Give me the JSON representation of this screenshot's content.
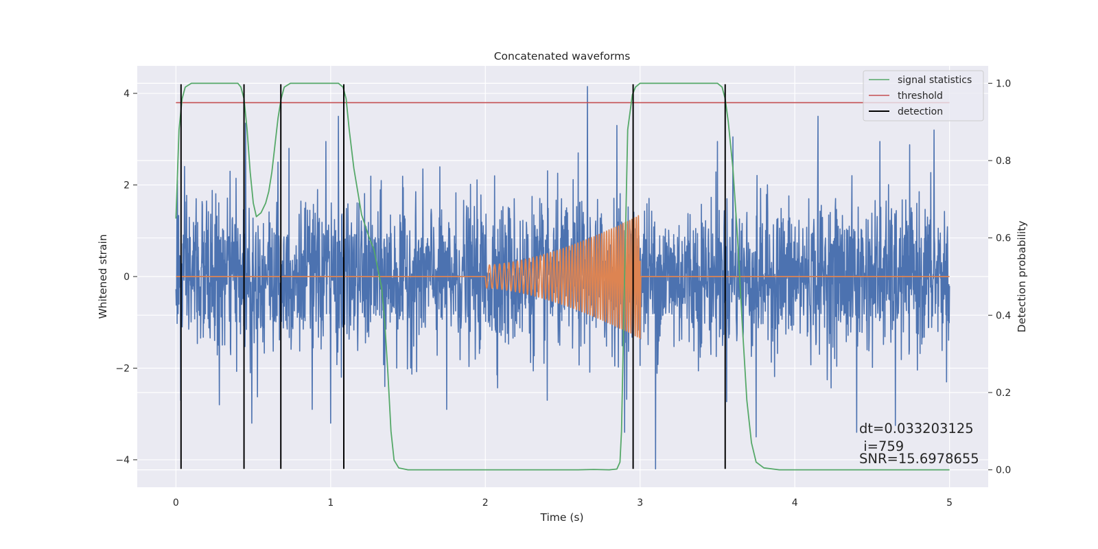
{
  "chart_data": {
    "type": "line",
    "title": "Concatenated waveforms",
    "xlabel": "Time (s)",
    "ylabel": "Whitened strain",
    "y2label": "Detection probability",
    "xlim": [
      -0.25,
      5.25
    ],
    "ylim": [
      -4.6,
      4.6
    ],
    "y2lim": [
      -0.045,
      1.045
    ],
    "xticks": [
      0,
      1,
      2,
      3,
      4,
      5
    ],
    "yticks": [
      -4,
      -2,
      0,
      2,
      4
    ],
    "y2ticks": [
      0.0,
      0.2,
      0.4,
      0.6,
      0.8,
      1.0
    ],
    "xtick_labels": [
      "0",
      "1",
      "2",
      "3",
      "4",
      "5"
    ],
    "ytick_labels": [
      "−4",
      "−2",
      "0",
      "2",
      "4"
    ],
    "y2tick_labels": [
      "0.0",
      "0.2",
      "0.4",
      "0.6",
      "0.8",
      "1.0"
    ],
    "grid": true,
    "legend_position": "top-right",
    "legend": [
      {
        "label": "signal statistics",
        "color": "#55a868"
      },
      {
        "label": "threshold",
        "color": "#c44e52"
      },
      {
        "label": "detection",
        "color": "#000000"
      }
    ],
    "colors": {
      "strain": "#4c72b0",
      "injection": "#dd8452",
      "signal_statistics": "#55a868",
      "threshold": "#c44e52",
      "detection": "#000000",
      "plot_background": "#eaeaf2",
      "grid": "#ffffff"
    },
    "series": [
      {
        "name": "signal statistics",
        "axis": "right",
        "x": [
          0.0,
          0.02,
          0.04,
          0.06,
          0.08,
          0.1,
          0.15,
          0.2,
          0.3,
          0.4,
          0.42,
          0.44,
          0.46,
          0.48,
          0.5,
          0.52,
          0.55,
          0.58,
          0.6,
          0.62,
          0.64,
          0.66,
          0.68,
          0.7,
          0.72,
          0.74,
          0.76,
          0.8,
          1.0,
          1.05,
          1.08,
          1.1,
          1.12,
          1.15,
          1.2,
          1.25,
          1.28,
          1.3,
          1.33,
          1.35,
          1.37,
          1.39,
          1.41,
          1.44,
          1.5,
          2.0,
          2.6,
          2.7,
          2.8,
          2.85,
          2.87,
          2.88,
          2.9,
          2.92,
          2.95,
          2.97,
          3.0,
          3.05,
          3.1,
          3.5,
          3.53,
          3.55,
          3.57,
          3.6,
          3.63,
          3.66,
          3.69,
          3.72,
          3.75,
          3.8,
          3.9,
          4.0,
          5.0
        ],
        "values": [
          0.65,
          0.88,
          0.96,
          0.99,
          0.995,
          1.0,
          1.0,
          1.0,
          1.0,
          1.0,
          0.99,
          0.96,
          0.88,
          0.77,
          0.69,
          0.655,
          0.665,
          0.69,
          0.72,
          0.77,
          0.84,
          0.91,
          0.96,
          0.99,
          0.995,
          1.0,
          1.0,
          1.0,
          1.0,
          1.0,
          0.99,
          0.96,
          0.88,
          0.78,
          0.66,
          0.6,
          0.57,
          0.53,
          0.47,
          0.38,
          0.25,
          0.1,
          0.025,
          0.005,
          0.0,
          0.0,
          0.0,
          0.001,
          0.0,
          0.002,
          0.02,
          0.1,
          0.5,
          0.88,
          0.97,
          0.99,
          1.0,
          1.0,
          1.0,
          1.0,
          0.99,
          0.96,
          0.9,
          0.78,
          0.6,
          0.38,
          0.18,
          0.07,
          0.02,
          0.005,
          0.0,
          0.0,
          0.0
        ]
      },
      {
        "name": "threshold",
        "axis": "right",
        "x": [
          0.0,
          5.0
        ],
        "values": [
          0.95,
          0.95
        ]
      },
      {
        "name": "detection",
        "axis": "left",
        "x": [
          0.033,
          0.44,
          0.678,
          1.085,
          2.955,
          3.55
        ],
        "y_range": [
          -4.2,
          4.2
        ]
      },
      {
        "name": "",
        "description": "whitened strain noise",
        "axis": "left",
        "x_range": [
          0.0,
          5.0
        ],
        "typical_amplitude": 0.85,
        "peaks": [
          {
            "x": 0.01,
            "y": 2.1
          },
          {
            "x": 0.03,
            "y": -2.7
          },
          {
            "x": 0.13,
            "y": 1.7
          },
          {
            "x": 0.28,
            "y": -2.8
          },
          {
            "x": 0.35,
            "y": 2.3
          },
          {
            "x": 0.45,
            "y": 3.35
          },
          {
            "x": 0.48,
            "y": -2.1
          },
          {
            "x": 0.49,
            "y": -3.2
          },
          {
            "x": 0.66,
            "y": 2.5
          },
          {
            "x": 0.73,
            "y": 2.8
          },
          {
            "x": 0.88,
            "y": -2.9
          },
          {
            "x": 0.97,
            "y": 2.95
          },
          {
            "x": 1.0,
            "y": -3.2
          },
          {
            "x": 1.05,
            "y": 3.5
          },
          {
            "x": 1.35,
            "y": -2.4
          },
          {
            "x": 1.75,
            "y": -2.9
          },
          {
            "x": 2.06,
            "y": 2.2
          },
          {
            "x": 2.4,
            "y": -2.7
          },
          {
            "x": 2.6,
            "y": 2.7
          },
          {
            "x": 2.66,
            "y": 4.15
          },
          {
            "x": 2.85,
            "y": 3.3
          },
          {
            "x": 2.9,
            "y": -3.4
          },
          {
            "x": 3.1,
            "y": -4.2
          },
          {
            "x": 3.5,
            "y": 2.95
          },
          {
            "x": 3.6,
            "y": 3.05
          },
          {
            "x": 3.75,
            "y": -3.5
          },
          {
            "x": 4.15,
            "y": 3.5
          },
          {
            "x": 4.4,
            "y": -3.4
          },
          {
            "x": 4.55,
            "y": 2.95
          },
          {
            "x": 4.65,
            "y": -3.25
          },
          {
            "x": 4.9,
            "y": 3.2
          },
          {
            "x": 4.98,
            "y": -2.3
          }
        ]
      },
      {
        "name": "",
        "description": "injected chirp waveform",
        "axis": "left",
        "x_range": [
          0.0,
          3.01
        ],
        "chirp_start": 2.0,
        "chirp_end": 3.0,
        "amplitude_start": 0.25,
        "amplitude_end": 1.35,
        "cycles": 38
      }
    ],
    "annotations": {
      "dt": "dt=0.033203125",
      "i": " i=759",
      "snr": "SNR=15.6978655"
    }
  }
}
